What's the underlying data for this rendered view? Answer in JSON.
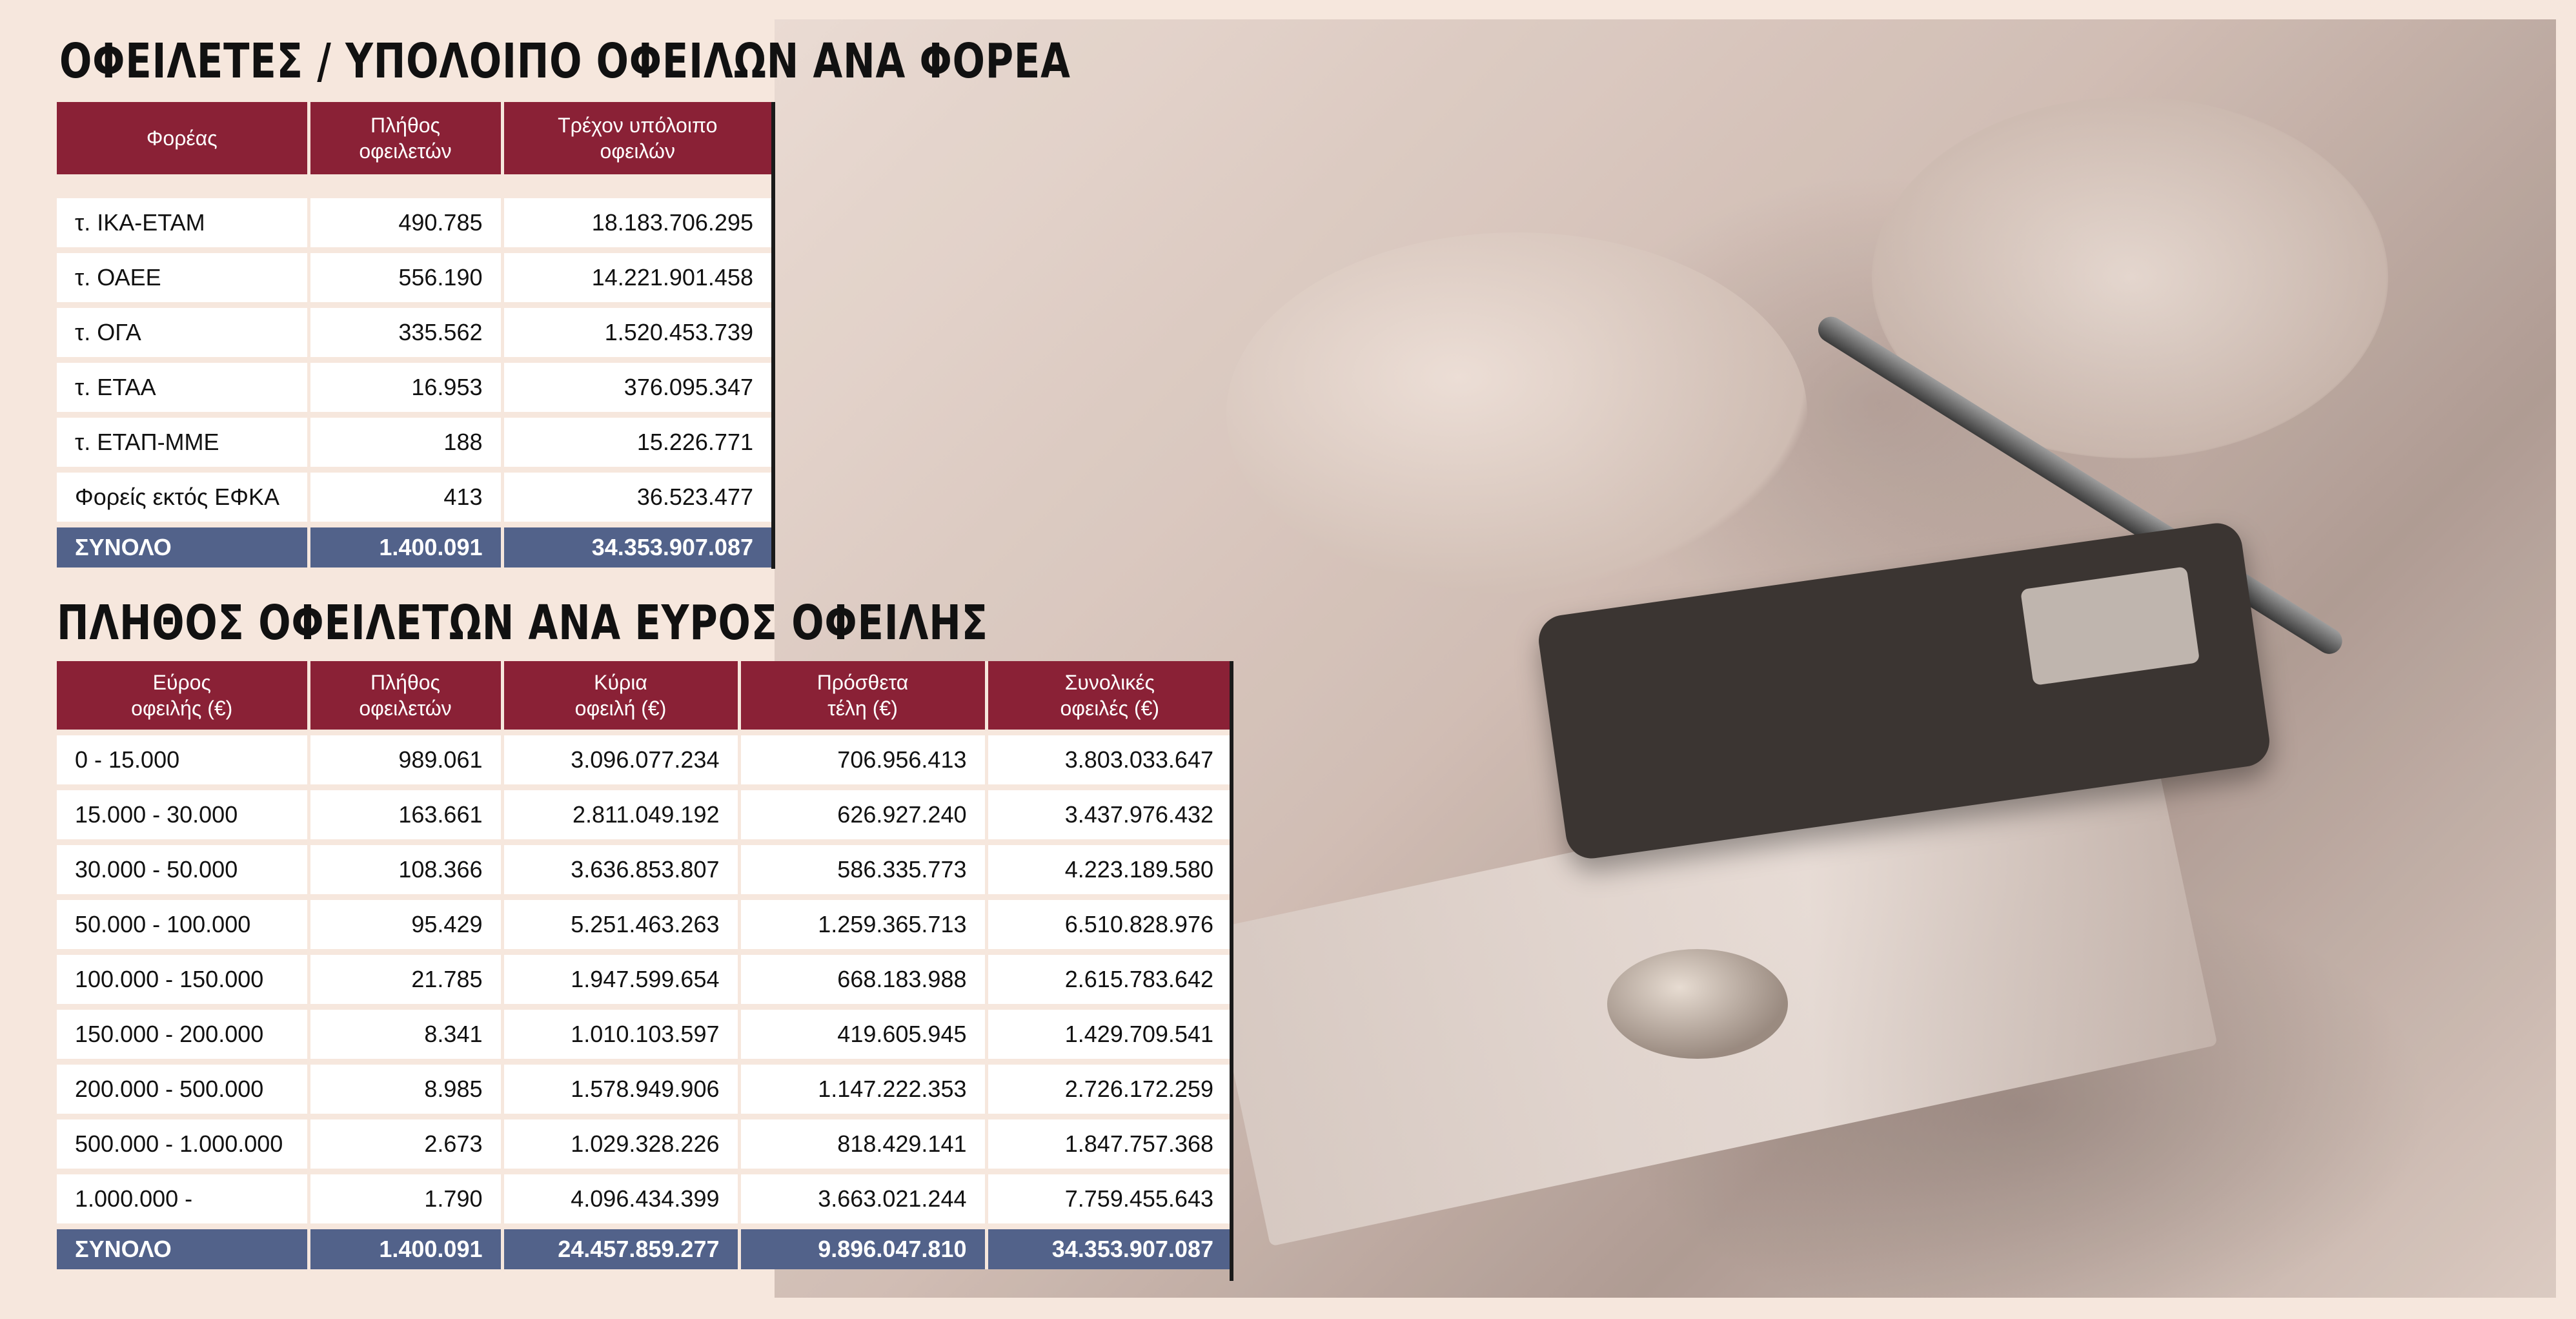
{
  "heading1": "ΟΦΕΙΛΕΤΕΣ / ΥΠΟΛΟΙΠΟ ΟΦΕΙΛΩΝ ΑΝΑ ΦΟΡΕΑ",
  "heading2": "ΠΛΗΘΟΣ ΟΦΕΙΛΕΤΩΝ ΑΝΑ ΕΥΡΟΣ ΟΦΕΙΛΗΣ",
  "table1": {
    "headers": [
      "Φορέας",
      "Πλήθος\nοφειλετών",
      "Τρέχον υπόλοιπο\nοφειλών"
    ],
    "rows": [
      [
        "τ. ΙΚΑ-ΕΤΑΜ",
        "490.785",
        "18.183.706.295"
      ],
      [
        "τ. ΟΑΕΕ",
        "556.190",
        "14.221.901.458"
      ],
      [
        "τ. ΟΓΑ",
        "335.562",
        "1.520.453.739"
      ],
      [
        "τ. ΕΤΑΑ",
        "16.953",
        "376.095.347"
      ],
      [
        "τ. ΕΤΑΠ-ΜΜΕ",
        "188",
        "15.226.771"
      ],
      [
        "Φορείς εκτός ΕΦΚΑ",
        "413",
        "36.523.477"
      ]
    ],
    "total": [
      "ΣΥΝΟΛΟ",
      "1.400.091",
      "34.353.907.087"
    ]
  },
  "table2": {
    "headers": [
      "Εύρος\nοφειλής (€)",
      "Πλήθος\nοφειλετών",
      "Κύρια\nοφειλή (€)",
      "Πρόσθετα\nτέλη (€)",
      "Συνολικές\nοφειλές (€)"
    ],
    "rows": [
      [
        "0 - 15.000",
        "989.061",
        "3.096.077.234",
        "706.956.413",
        "3.803.033.647"
      ],
      [
        "15.000 - 30.000",
        "163.661",
        "2.811.049.192",
        "626.927.240",
        "3.437.976.432"
      ],
      [
        "30.000 - 50.000",
        "108.366",
        "3.636.853.807",
        "586.335.773",
        "4.223.189.580"
      ],
      [
        "50.000 - 100.000",
        "95.429",
        "5.251.463.263",
        "1.259.365.713",
        "6.510.828.976"
      ],
      [
        "100.000 - 150.000",
        "21.785",
        "1.947.599.654",
        "668.183.988",
        "2.615.783.642"
      ],
      [
        "150.000 - 200.000",
        "8.341",
        "1.010.103.597",
        "419.605.945",
        "1.429.709.541"
      ],
      [
        "200.000 - 500.000",
        "8.985",
        "1.578.949.906",
        "1.147.222.353",
        "2.726.172.259"
      ],
      [
        "500.000 - 1.000.000",
        "2.673",
        "1.029.328.226",
        "818.429.141",
        "1.847.757.368"
      ],
      [
        "1.000.000 -",
        "1.790",
        "4.096.434.399",
        "3.663.021.244",
        "7.759.455.643"
      ]
    ],
    "total": [
      "ΣΥΝΟΛΟ",
      "1.400.091",
      "24.457.859.277",
      "9.896.047.810",
      "34.353.907.087"
    ]
  },
  "colors": {
    "header_bg": "#8a2136",
    "total_bg": "#52628a",
    "page_bg": "#f6e7dd"
  }
}
